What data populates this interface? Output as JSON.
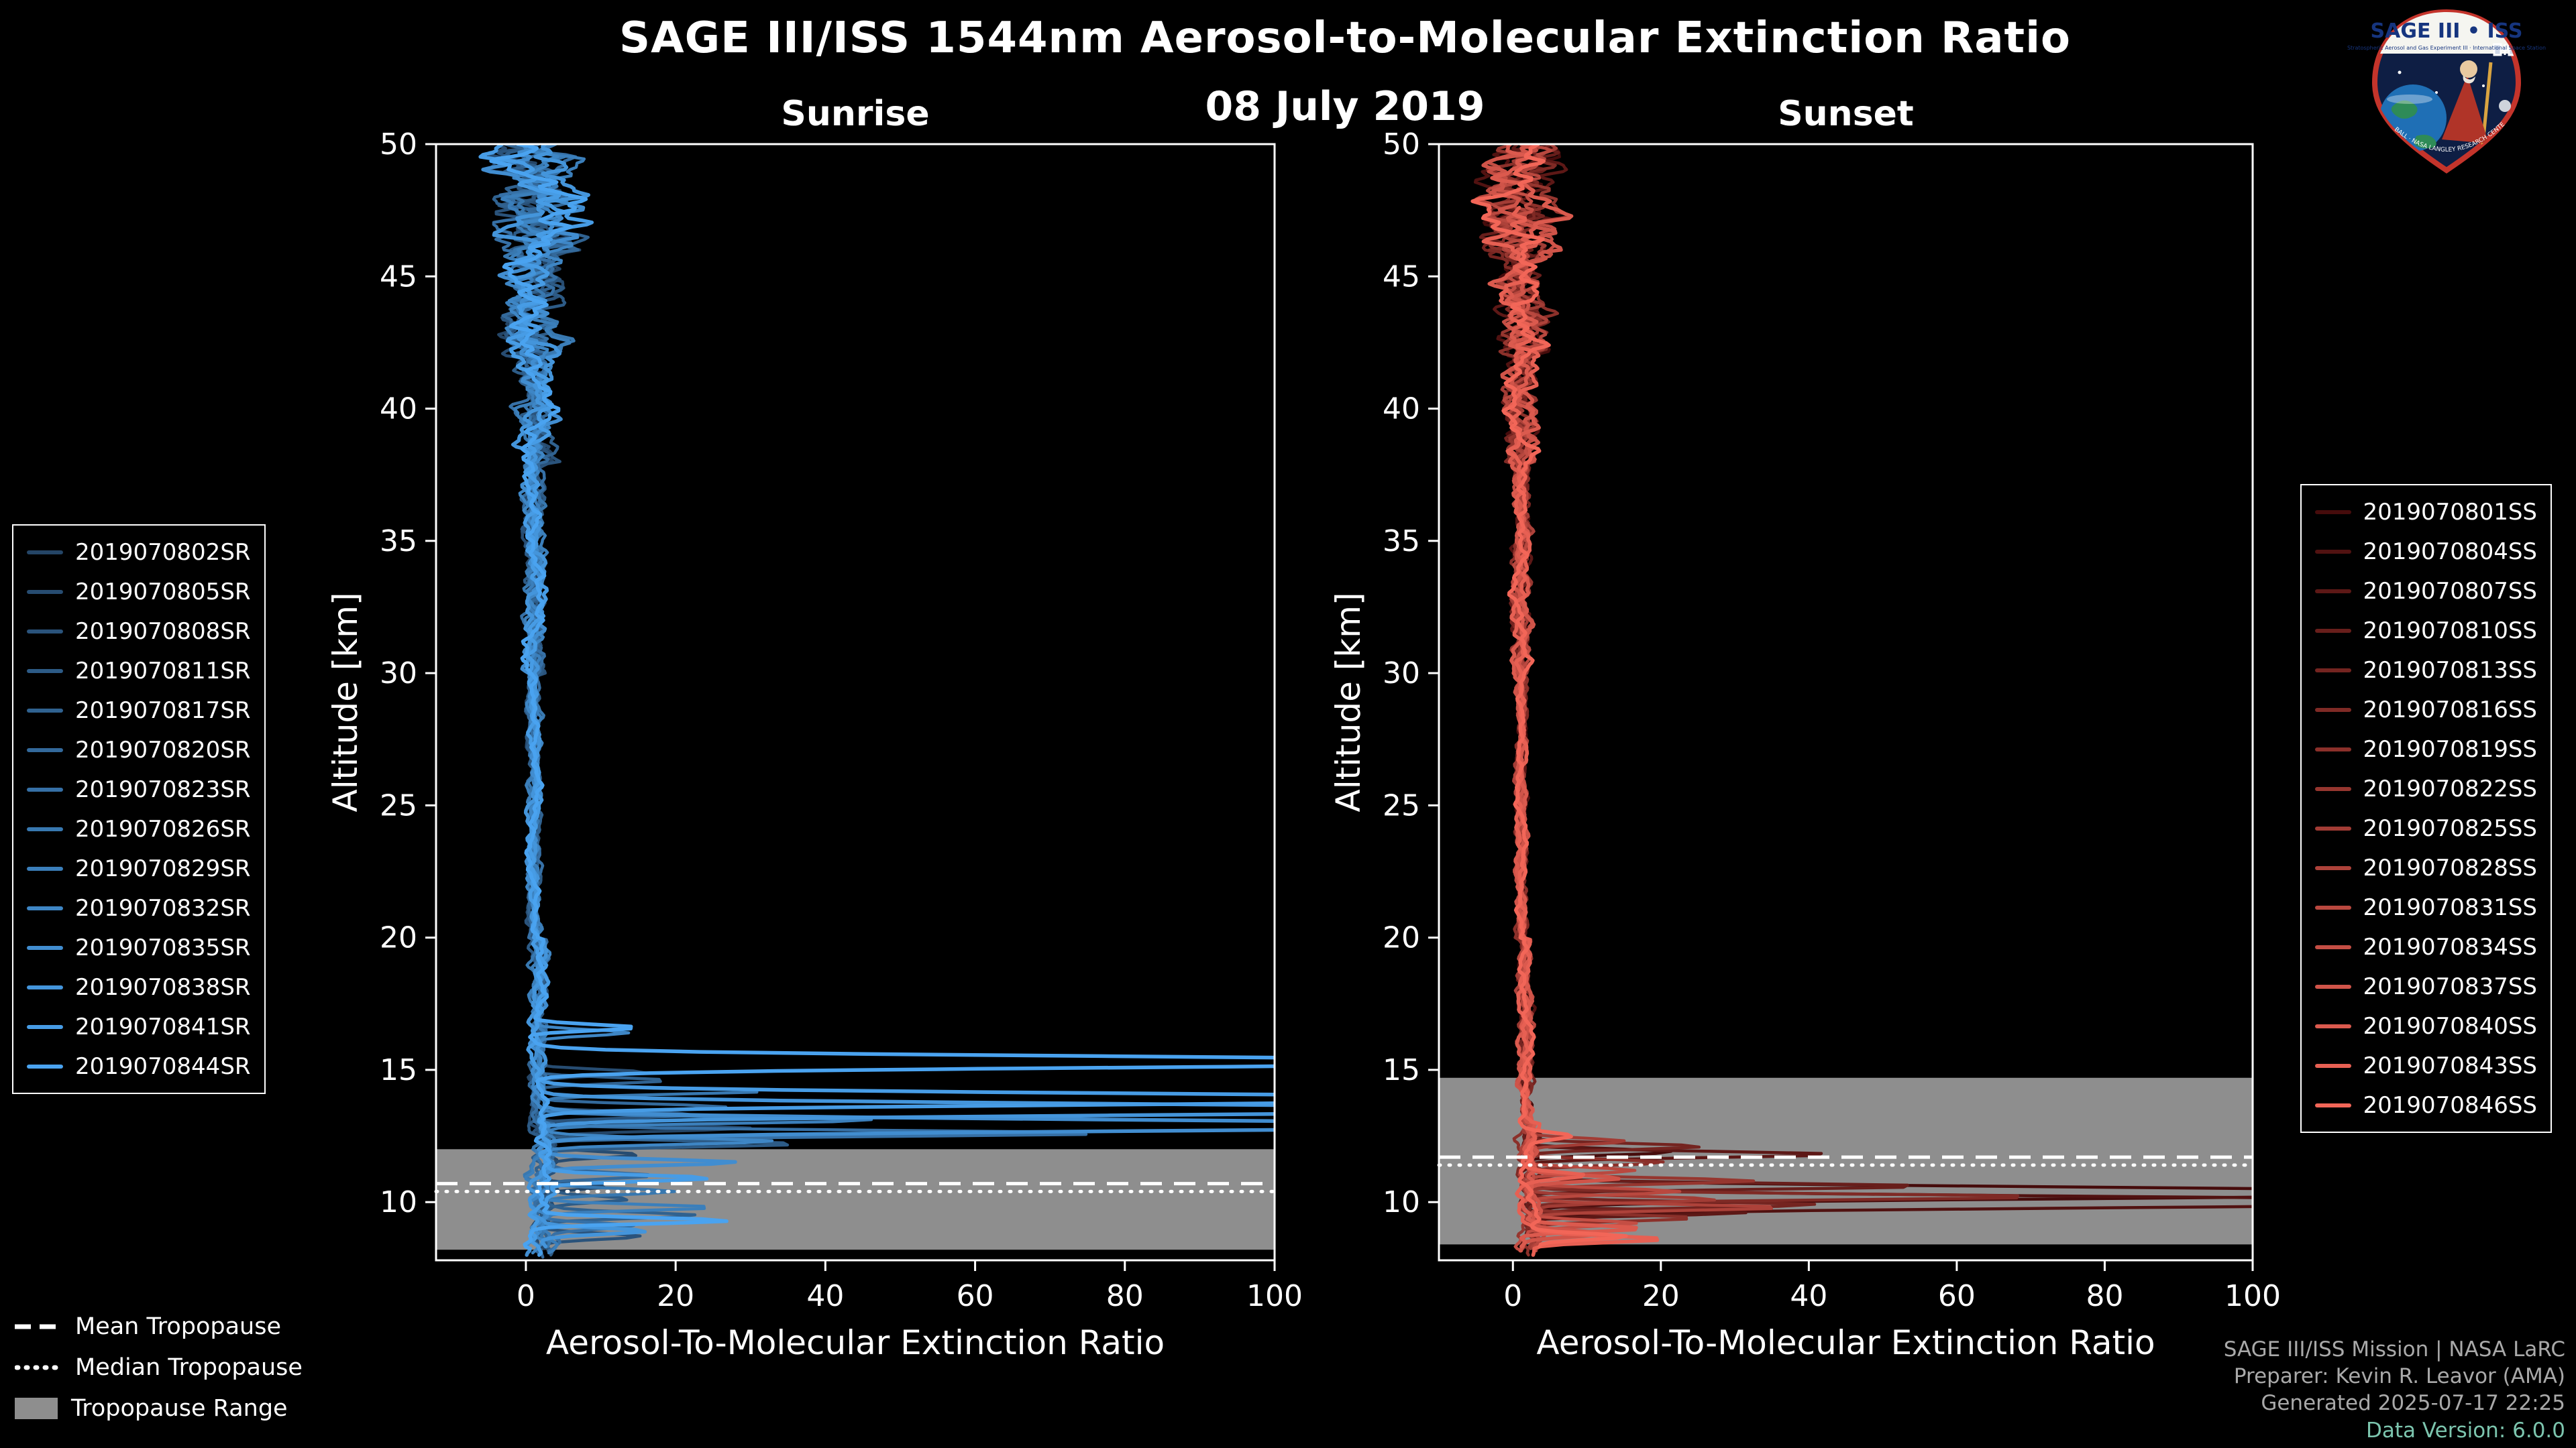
{
  "header": {
    "title": "SAGE III/ISS 1544nm Aerosol-to-Molecular Extinction Ratio",
    "date": "08 July 2019"
  },
  "logo": {
    "title": "SAGE III • ISS",
    "subtitle": "Stratospheric Aerosol and Gas Experiment III · International Space Station",
    "ring_text": "BALL · NASA LANGLEY RESEARCH CENTER · ESA"
  },
  "tropopause_legend": {
    "mean": "Mean Tropopause",
    "median": "Median Tropopause",
    "range": "Tropopause Range"
  },
  "footer": {
    "line1": "SAGE III/ISS Mission | NASA LaRC",
    "line2": "Preparer: Kevin R. Leavor (AMA)",
    "line3": "Generated 2025-07-17 22:25",
    "line4": "Data Version: 6.0.0"
  },
  "colors": {
    "background": "#000000",
    "axis": "#ffffff",
    "tropopause_band": "#8e8e8e",
    "tropopause_lines": "#ffffff",
    "footer_gray": "#a9a9a9",
    "footer_teal": "#7cc5ae",
    "sunrise_dark": "#244566",
    "sunrise_bright": "#4aa3f0",
    "sunset_dark": "#460c0c",
    "sunset_bright": "#f26658"
  },
  "chart_data": {
    "type": "line",
    "title": "SAGE III/ISS 1544nm Aerosol-to-Molecular Extinction Ratio",
    "subtitle": "08 July 2019",
    "legend_position": "outside-left-and-right",
    "grid": false,
    "panels": [
      {
        "id": "sunrise",
        "title": "Sunrise",
        "xlabel": "Aerosol-To-Molecular Extinction Ratio",
        "ylabel": "Altitude [km]",
        "xlim": [
          -12,
          100
        ],
        "ylim": [
          7.8,
          50
        ],
        "xticks": [
          0,
          20,
          40,
          60,
          80,
          100
        ],
        "yticks": [
          10,
          15,
          20,
          25,
          30,
          35,
          40,
          45,
          50
        ],
        "noise_scale": 1.0,
        "tropopause": {
          "mean_km": 10.7,
          "median_km": 10.4,
          "range_km": [
            8.2,
            12.0
          ]
        },
        "profile_shape_note": "ratio ~0-3 from 17-50 km with noisy excursions (-7..+9) above 42 km; sharp aerosol spikes below 17 km",
        "series": [
          {
            "name": "2019070802SR",
            "color": "#244566",
            "seed": 1,
            "spikes": [
              [
                12.8,
                28
              ],
              [
                10.6,
                9
              ]
            ]
          },
          {
            "name": "2019070805SR",
            "color": "#274c71",
            "seed": 2,
            "spikes": [
              [
                14.9,
                15
              ],
              [
                11.8,
                12
              ]
            ]
          },
          {
            "name": "2019070808SR",
            "color": "#2a537b",
            "seed": 3,
            "spikes": [
              [
                13.3,
                22
              ],
              [
                8.7,
                14
              ]
            ]
          },
          {
            "name": "2019070811SR",
            "color": "#2d5b86",
            "seed": 4,
            "spikes": [
              [
                12.2,
                35
              ],
              [
                10.1,
                10
              ]
            ]
          },
          {
            "name": "2019070817SR",
            "color": "#306290",
            "seed": 5,
            "spikes": [
              [
                14.6,
                18
              ],
              [
                9.5,
                20
              ]
            ]
          },
          {
            "name": "2019070820SR",
            "color": "#33699b",
            "seed": 6,
            "spikes": [
              [
                13.6,
                25
              ],
              [
                11.0,
                14
              ]
            ]
          },
          {
            "name": "2019070823SR",
            "color": "#3670a6",
            "seed": 7,
            "spikes": [
              [
                12.6,
                77
              ],
              [
                9.1,
                12
              ]
            ]
          },
          {
            "name": "2019070826SR",
            "color": "#3878b0",
            "seed": 8,
            "spikes": [
              [
                14.2,
                30
              ],
              [
                10.4,
                18
              ]
            ]
          },
          {
            "name": "2019070829SR",
            "color": "#3b7fbb",
            "seed": 9,
            "spikes": [
              [
                13.1,
                45
              ],
              [
                9.8,
                24
              ]
            ]
          },
          {
            "name": "2019070832SR",
            "color": "#3e86c5",
            "seed": 10,
            "spikes": [
              [
                16.4,
                12
              ],
              [
                12.3,
                30
              ]
            ]
          },
          {
            "name": "2019070835SR",
            "color": "#418dd0",
            "seed": 11,
            "spikes": [
              [
                12.9,
                140
              ],
              [
                11.5,
                25
              ]
            ]
          },
          {
            "name": "2019070838SR",
            "color": "#4495db",
            "seed": 12,
            "spikes": [
              [
                13.5,
                140
              ],
              [
                8.9,
                15
              ]
            ]
          },
          {
            "name": "2019070841SR",
            "color": "#479ce5",
            "seed": 13,
            "spikes": [
              [
                13.9,
                140
              ],
              [
                10.9,
                21
              ]
            ]
          },
          {
            "name": "2019070844SR",
            "color": "#4aa3f0",
            "seed": 14,
            "spikes": [
              [
                15.3,
                140
              ],
              [
                9.3,
                26
              ],
              [
                16.6,
                14
              ]
            ]
          }
        ]
      },
      {
        "id": "sunset",
        "title": "Sunset",
        "xlabel": "Aerosol-To-Molecular Extinction Ratio",
        "ylabel": "Altitude [km]",
        "xlim": [
          -10,
          100
        ],
        "ylim": [
          7.8,
          50
        ],
        "xticks": [
          0,
          20,
          40,
          60,
          80,
          100
        ],
        "yticks": [
          10,
          15,
          20,
          25,
          30,
          35,
          40,
          45,
          50
        ],
        "noise_scale": 0.85,
        "tropopause": {
          "mean_km": 11.7,
          "median_km": 11.4,
          "range_km": [
            8.4,
            14.7
          ]
        },
        "profile_shape_note": "ratio ~0-3 from 15-50 km; dark early-profile spikes reach full scale near 10-10.5 km",
        "series": [
          {
            "name": "2019070801SS",
            "color": "#460c0c",
            "seed": 101,
            "spikes": [
              [
                10.35,
                140
              ],
              [
                11.9,
                20
              ]
            ]
          },
          {
            "name": "2019070804SS",
            "color": "#511211",
            "seed": 102,
            "spikes": [
              [
                10.0,
                140
              ]
            ]
          },
          {
            "name": "2019070807SS",
            "color": "#5d1816",
            "seed": 103,
            "spikes": [
              [
                11.8,
                42
              ],
              [
                9.6,
                30
              ]
            ]
          },
          {
            "name": "2019070810SS",
            "color": "#681e1b",
            "seed": 104,
            "spikes": [
              [
                10.6,
                55
              ]
            ]
          },
          {
            "name": "2019070813SS",
            "color": "#742420",
            "seed": 105,
            "spikes": [
              [
                12.1,
                25
              ],
              [
                9.9,
                40
              ]
            ]
          },
          {
            "name": "2019070816SS",
            "color": "#7f2a25",
            "seed": 106,
            "spikes": [
              [
                10.2,
                70
              ]
            ]
          },
          {
            "name": "2019070819SS",
            "color": "#8b302a",
            "seed": 107,
            "spikes": [
              [
                11.5,
                18
              ],
              [
                9.4,
                22
              ]
            ]
          },
          {
            "name": "2019070822SS",
            "color": "#96362f",
            "seed": 108,
            "spikes": [
              [
                10.8,
                30
              ]
            ]
          },
          {
            "name": "2019070825SS",
            "color": "#a23c35",
            "seed": 109,
            "spikes": [
              [
                12.3,
                14
              ],
              [
                10.1,
                25
              ]
            ]
          },
          {
            "name": "2019070828SS",
            "color": "#ad423a",
            "seed": 110,
            "spikes": [
              [
                9.8,
                35
              ]
            ]
          },
          {
            "name": "2019070831SS",
            "color": "#b9483f",
            "seed": 111,
            "spikes": [
              [
                11.2,
                16
              ],
              [
                10.4,
                20
              ]
            ]
          },
          {
            "name": "2019070834SS",
            "color": "#c44e44",
            "seed": 112,
            "spikes": [
              [
                9.2,
                14
              ]
            ]
          },
          {
            "name": "2019070837SS",
            "color": "#d05449",
            "seed": 113,
            "spikes": [
              [
                10.9,
                12
              ],
              [
                8.8,
                10
              ]
            ]
          },
          {
            "name": "2019070840SS",
            "color": "#db5a4e",
            "seed": 114,
            "spikes": [
              [
                9.0,
                16
              ]
            ]
          },
          {
            "name": "2019070843SS",
            "color": "#e76053",
            "seed": 115,
            "spikes": [
              [
                8.6,
                18
              ],
              [
                11.0,
                8
              ]
            ]
          },
          {
            "name": "2019070846SS",
            "color": "#f26658",
            "seed": 116,
            "spikes": [
              [
                8.7,
                12
              ],
              [
                12.5,
                6
              ]
            ]
          }
        ]
      }
    ]
  }
}
